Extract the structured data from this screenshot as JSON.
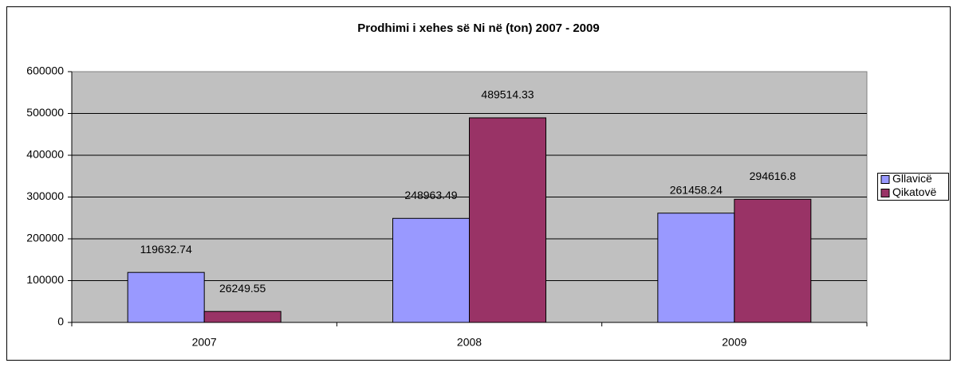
{
  "chart_data": {
    "type": "bar",
    "title": "Prodhimi i xehes së Ni në (ton) 2007 - 2009",
    "categories": [
      "2007",
      "2008",
      "2009"
    ],
    "series": [
      {
        "name": "Gllavicë",
        "color": "#9999ff",
        "values": [
          119632.74,
          248963.49,
          261458.24
        ]
      },
      {
        "name": "Qikatovë",
        "color": "#993366",
        "values": [
          26249.55,
          489514.33,
          294616.8
        ]
      }
    ],
    "ylim": [
      0,
      600000
    ],
    "yticks": [
      0,
      100000,
      200000,
      300000,
      400000,
      500000,
      600000
    ],
    "grid": true,
    "legend": "right"
  }
}
